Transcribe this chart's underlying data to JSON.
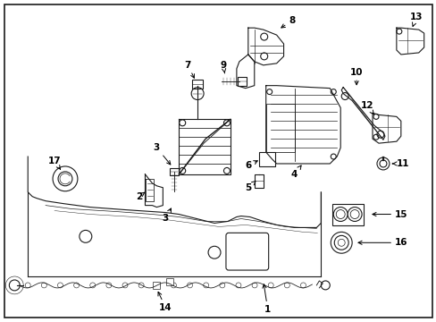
{
  "background_color": "#ffffff",
  "border_color": "#000000",
  "text_color": "#000000",
  "fig_width": 4.89,
  "fig_height": 3.6,
  "dpi": 100,
  "lw": 0.8,
  "fs": 7.5
}
